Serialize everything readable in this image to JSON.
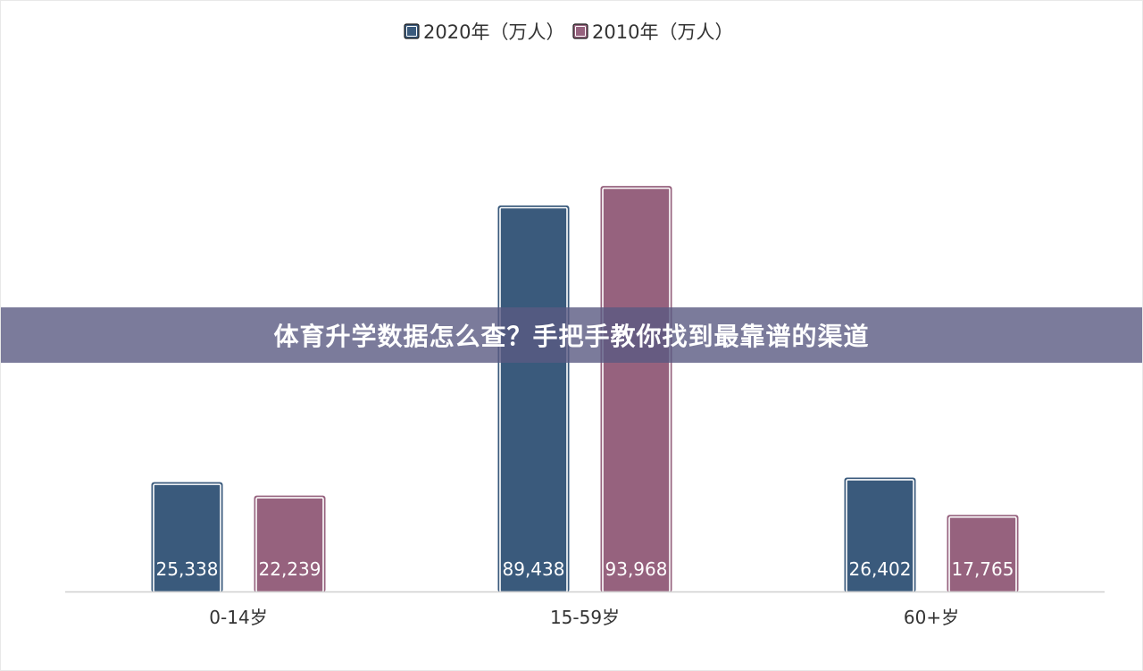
{
  "chart_data": {
    "type": "bar",
    "categories": [
      "0-14岁",
      "15-59岁",
      "60+岁"
    ],
    "series": [
      {
        "name": "2020年（万人）",
        "values": [
          25338,
          89438,
          26402
        ],
        "color": "#3a5a7c"
      },
      {
        "name": "2010年（万人）",
        "values": [
          22239,
          93968,
          17765
        ],
        "color": "#96627e"
      }
    ],
    "value_labels": [
      [
        "25,338",
        "89,438",
        "26,402"
      ],
      [
        "22,239",
        "93,968",
        "17,765"
      ]
    ],
    "ylim": [
      0,
      100000
    ],
    "grid": false,
    "legend_position": "top-center"
  },
  "banner": {
    "title": "体育升学数据怎么查？手把手教你找到最靠谱的渠道"
  }
}
